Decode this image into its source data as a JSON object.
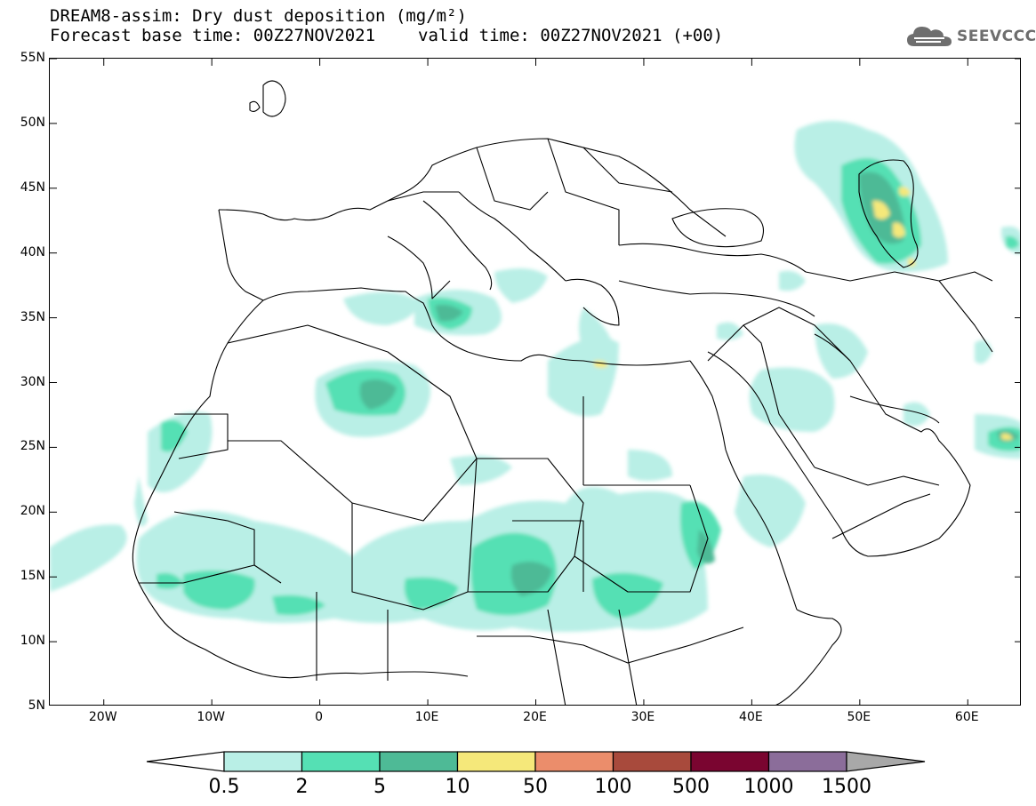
{
  "title": {
    "line1": "DREAM8-assim: Dry dust deposition (mg/m²)",
    "base_time": "Forecast base time: 00Z27NOV2021",
    "valid_time": "valid time: 00Z27NOV2021 (+00)"
  },
  "logo": {
    "text": "SEEVCCC",
    "icon": "cloud-icon"
  },
  "map": {
    "projection": "lat-lon",
    "lon_range": [
      -25,
      65
    ],
    "lat_range": [
      5,
      55
    ],
    "lat_labels": [
      "55N",
      "50N",
      "45N",
      "40N",
      "35N",
      "30N",
      "25N",
      "20N",
      "15N",
      "10N",
      "5N"
    ],
    "lon_labels": [
      "20W",
      "10W",
      "0",
      "10E",
      "20E",
      "30E",
      "40E",
      "50E",
      "60E"
    ]
  },
  "colorbar": {
    "labels": [
      "0.5",
      "2",
      "5",
      "10",
      "50",
      "100",
      "500",
      "1000",
      "1500"
    ],
    "colors": [
      "#b9efe6",
      "#55e0b4",
      "#4eba96",
      "#f5e87a",
      "#eb8d6b",
      "#a84a3c",
      "#7a0530",
      "#8b6d9a"
    ],
    "under_color": "#ffffff",
    "over_color": "#a8a8a8"
  }
}
